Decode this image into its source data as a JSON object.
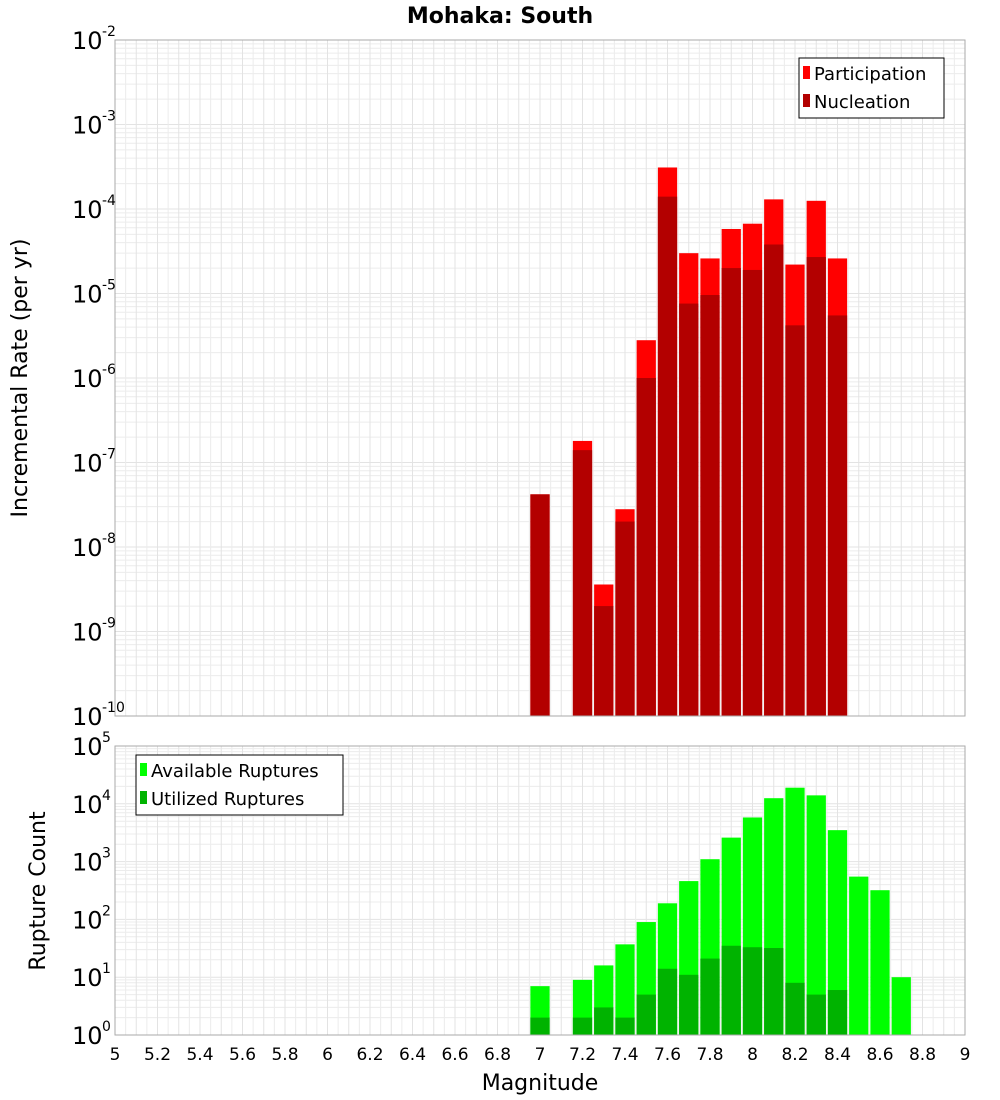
{
  "chart_data": [
    {
      "type": "bar",
      "title": "Mohaka: South",
      "xlabel": "",
      "ylabel": "Incremental Rate (per yr)",
      "yscale": "log",
      "ylim": [
        1e-10,
        0.01
      ],
      "xlim": [
        5,
        9
      ],
      "grid": true,
      "legend_position": "top-right",
      "x": [
        7.0,
        7.2,
        7.3,
        7.4,
        7.5,
        7.6,
        7.7,
        7.8,
        7.9,
        8.0,
        8.1,
        8.2,
        8.3,
        8.4
      ],
      "series": [
        {
          "name": "Participation",
          "color": "#ff0000",
          "values": [
            4.2e-08,
            1.8e-07,
            3.6e-09,
            2.8e-08,
            2.8e-06,
            0.00031,
            3e-05,
            2.6e-05,
            5.8e-05,
            6.7e-05,
            0.00013,
            2.2e-05,
            0.000125,
            2.6e-05
          ]
        },
        {
          "name": "Nucleation",
          "color": "#b30000",
          "values": [
            4.2e-08,
            1.4e-07,
            2e-09,
            2e-08,
            1e-06,
            0.00014,
            7.6e-06,
            9.6e-06,
            2e-05,
            1.9e-05,
            3.8e-05,
            4.2e-06,
            2.7e-05,
            5.5e-06
          ]
        }
      ]
    },
    {
      "type": "bar",
      "title": "",
      "xlabel": "Magnitude",
      "ylabel": "Rupture Count",
      "yscale": "log",
      "ylim": [
        1,
        100000.0
      ],
      "xlim": [
        5,
        9
      ],
      "grid": true,
      "legend_position": "top-left",
      "xticks": [
        "5",
        "5.2",
        "5.4",
        "5.6",
        "5.8",
        "6",
        "6.2",
        "6.4",
        "6.6",
        "6.8",
        "7",
        "7.2",
        "7.4",
        "7.6",
        "7.8",
        "8",
        "8.2",
        "8.4",
        "8.6",
        "8.8",
        "9"
      ],
      "x": [
        7.0,
        7.2,
        7.3,
        7.4,
        7.5,
        7.6,
        7.7,
        7.8,
        7.9,
        8.0,
        8.1,
        8.2,
        8.3,
        8.4,
        8.5,
        8.6,
        8.7
      ],
      "series": [
        {
          "name": "Available Ruptures",
          "color": "#00ff00",
          "values": [
            7,
            9,
            16,
            37,
            90,
            190,
            460,
            1100,
            2600,
            5800,
            12500,
            19000,
            14000,
            3500,
            550,
            320,
            10
          ]
        },
        {
          "name": "Utilized Ruptures",
          "color": "#00b300",
          "values": [
            2,
            2,
            3,
            2,
            5,
            14,
            11,
            21,
            35,
            33,
            32,
            8,
            5,
            6,
            0,
            0,
            0
          ]
        }
      ]
    }
  ]
}
